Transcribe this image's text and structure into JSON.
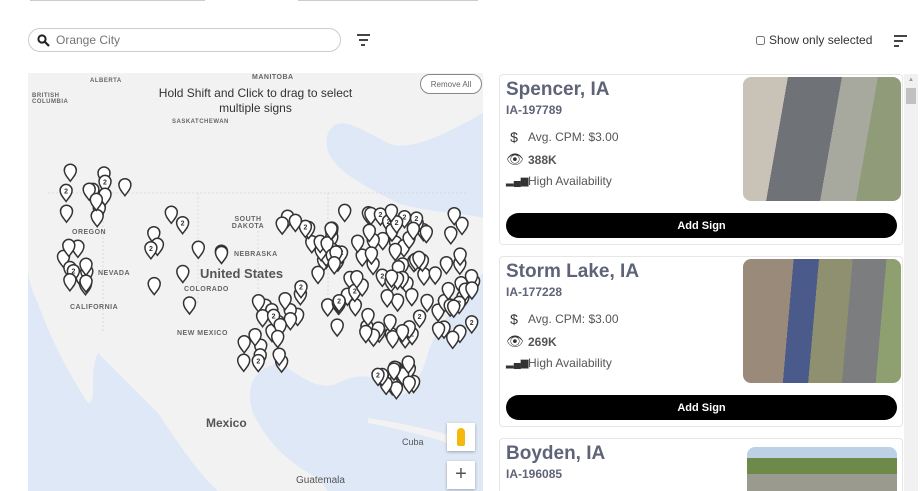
{
  "search": {
    "placeholder": "Orange City"
  },
  "toolbar": {
    "show_only_selected": "Show only selected"
  },
  "map": {
    "hint": "Hold Shift and Click to drag to select multiple signs",
    "remove_all": "Remove All",
    "labels": {
      "alberta": "ALBERTA",
      "manitoba": "MANITOBA",
      "british_columbia": "BRITISH COLUMBIA",
      "saskatchewan": "SASKATCHEWAN",
      "south_dakota": "SOUTH DAKOTA",
      "oregon": "OREGON",
      "nevada": "NEVADA",
      "united_states": "United States",
      "colorado": "COLORADO",
      "nebraska": "NEBRASKA",
      "california": "CALIFORNIA",
      "new_mexico": "NEW MEXICO",
      "mexico": "Mexico",
      "cuba": "Cuba",
      "guatemala": "Guatemala"
    },
    "cluster_label": "2"
  },
  "cards": [
    {
      "title": "Spencer, IA",
      "id": "IA-197789",
      "cpm": "Avg. CPM: $3.00",
      "impressions": "388K",
      "availability": "High Availability",
      "button": "Add Sign"
    },
    {
      "title": "Storm Lake, IA",
      "id": "IA-177228",
      "cpm": "Avg. CPM: $3.00",
      "impressions": "269K",
      "availability": "High Availability",
      "button": "Add Sign"
    },
    {
      "title": "Boyden, IA",
      "id": "IA-196085"
    }
  ],
  "icons": {
    "search": "search-icon",
    "filter": "filter-icon",
    "sort": "sort-icon",
    "dollar": "dollar-icon",
    "eye": "eye-icon",
    "signal": "signal-bars-icon",
    "pegman": "street-view-icon"
  }
}
